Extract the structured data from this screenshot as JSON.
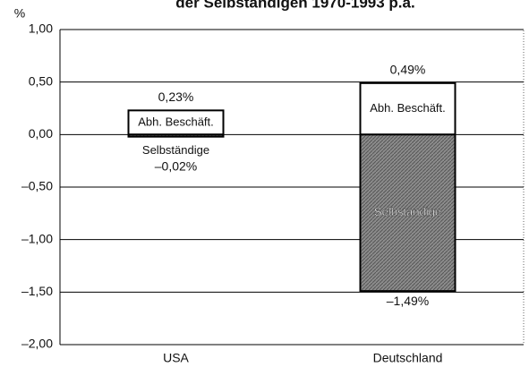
{
  "chart_data": {
    "type": "bar",
    "stacked": true,
    "title": "der Selbständigen 1970-1993 p.a.",
    "ylabel": "%",
    "categories": [
      "USA",
      "Deutschland"
    ],
    "series": [
      {
        "name": "Abh. Beschäft.",
        "color": "#ffffff",
        "values": [
          0.23,
          0.49
        ],
        "value_labels": [
          "0,23%",
          "0,49%"
        ]
      },
      {
        "name": "Selbständige",
        "color": "#8c8c8c",
        "values": [
          -0.02,
          -1.49
        ],
        "value_labels": [
          "–0,02%",
          "–1,49%"
        ]
      }
    ],
    "ylim": [
      -2,
      1
    ],
    "yticks": [
      {
        "value": 1,
        "label": "1,00"
      },
      {
        "value": 0.5,
        "label": "0,50"
      },
      {
        "value": 0,
        "label": "0,00"
      },
      {
        "value": -0.5,
        "label": "–0,50"
      },
      {
        "value": -1,
        "label": "–1,00"
      },
      {
        "value": -1.5,
        "label": "–1,50"
      },
      {
        "value": -2,
        "label": "–2,00"
      }
    ],
    "grid": true
  }
}
